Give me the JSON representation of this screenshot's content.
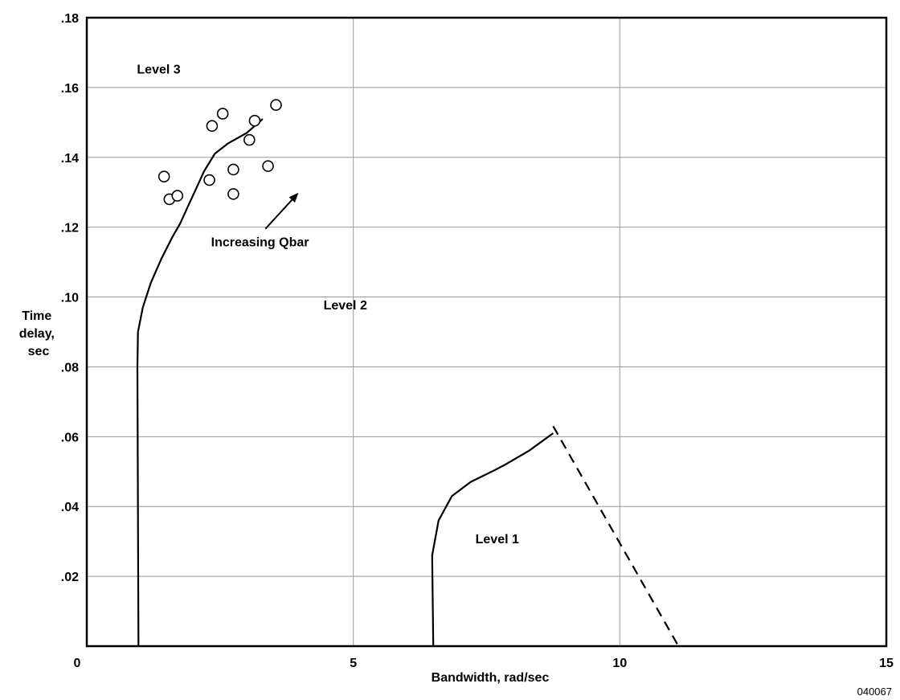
{
  "chart_data": {
    "type": "scatter",
    "xlabel": "Bandwidth, rad/sec",
    "ylabel": [
      "Time",
      "delay,",
      "sec"
    ],
    "xlim": [
      0,
      15
    ],
    "ylim": [
      0,
      0.18
    ],
    "grid": true,
    "x_ticks": [
      {
        "value": 0,
        "label": "0"
      },
      {
        "value": 5,
        "label": "5"
      },
      {
        "value": 10,
        "label": "10"
      },
      {
        "value": 15,
        "label": "15"
      }
    ],
    "y_ticks": [
      {
        "value": 0.02,
        "label": ".02"
      },
      {
        "value": 0.04,
        "label": ".04"
      },
      {
        "value": 0.06,
        "label": ".06"
      },
      {
        "value": 0.08,
        "label": ".08"
      },
      {
        "value": 0.1,
        "label": ".10"
      },
      {
        "value": 0.12,
        "label": ".12"
      },
      {
        "value": 0.14,
        "label": ".14"
      },
      {
        "value": 0.16,
        "label": ".16"
      },
      {
        "value": 0.18,
        "label": ".18"
      }
    ],
    "boundaries": [
      {
        "id": "level2-3",
        "style": "solid",
        "points": [
          [
            0.97,
            0
          ],
          [
            0.95,
            0.08
          ],
          [
            0.96,
            0.09
          ],
          [
            1.05,
            0.097
          ],
          [
            1.2,
            0.104
          ],
          [
            1.4,
            0.111
          ],
          [
            1.6,
            0.117
          ],
          [
            1.75,
            0.121
          ],
          [
            1.9,
            0.126
          ],
          [
            2.05,
            0.131
          ],
          [
            2.2,
            0.136
          ],
          [
            2.4,
            0.141
          ],
          [
            2.65,
            0.144
          ],
          [
            3.0,
            0.147
          ],
          [
            3.3,
            0.151
          ]
        ]
      },
      {
        "id": "level1-2",
        "style": "solid",
        "points": [
          [
            6.5,
            0
          ],
          [
            6.48,
            0.026
          ],
          [
            6.6,
            0.036
          ],
          [
            6.85,
            0.043
          ],
          [
            7.2,
            0.047
          ],
          [
            7.6,
            0.05
          ],
          [
            7.85,
            0.052
          ],
          [
            8.3,
            0.056
          ],
          [
            8.75,
            0.061
          ]
        ]
      },
      {
        "id": "level1-2-dashed",
        "style": "dashed",
        "points": [
          [
            8.75,
            0.063
          ],
          [
            11.1,
            0
          ]
        ]
      }
    ],
    "scatter_points": [
      {
        "x": 1.45,
        "y": 0.1345
      },
      {
        "x": 1.55,
        "y": 0.128
      },
      {
        "x": 1.7,
        "y": 0.129
      },
      {
        "x": 2.3,
        "y": 0.1335
      },
      {
        "x": 2.35,
        "y": 0.149
      },
      {
        "x": 2.55,
        "y": 0.1525
      },
      {
        "x": 2.75,
        "y": 0.1365
      },
      {
        "x": 2.75,
        "y": 0.1295
      },
      {
        "x": 3.05,
        "y": 0.145
      },
      {
        "x": 3.15,
        "y": 0.1505
      },
      {
        "x": 3.4,
        "y": 0.1375
      },
      {
        "x": 3.55,
        "y": 0.155
      }
    ],
    "region_labels": [
      {
        "text": "Level 3",
        "x": 1.35,
        "y": 0.164
      },
      {
        "text": "Level 2",
        "x": 4.85,
        "y": 0.0965
      },
      {
        "text": "Level 1",
        "x": 7.7,
        "y": 0.0295
      }
    ],
    "annotation": {
      "text": "Increasing Qbar",
      "label_at": [
        3.25,
        0.1145
      ],
      "arrow_from": [
        3.35,
        0.1195
      ],
      "arrow_to": [
        3.95,
        0.1295
      ]
    },
    "figure_id": "040067"
  }
}
